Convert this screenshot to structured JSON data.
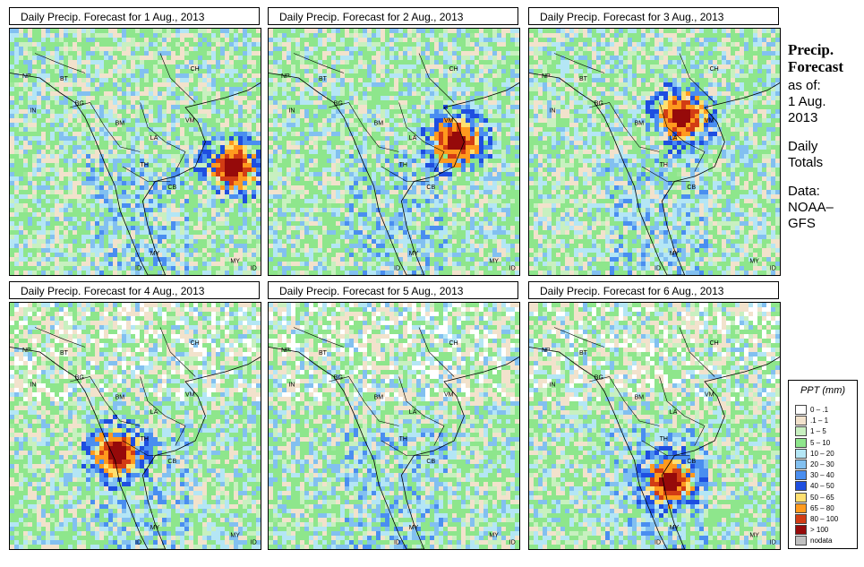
{
  "panels": [
    {
      "title": "Daily Precip. Forecast for  1 Aug., 2013",
      "storm": "east"
    },
    {
      "title": "Daily Precip. Forecast for  2 Aug., 2013",
      "storm": "gulf"
    },
    {
      "title": "Daily Precip. Forecast for  3 Aug., 2013",
      "storm": "north"
    },
    {
      "title": "Daily Precip. Forecast for  4 Aug., 2013",
      "storm": "west"
    },
    {
      "title": "Daily Precip. Forecast for  5 Aug., 2013",
      "storm": "none"
    },
    {
      "title": "Daily Precip. Forecast for  6 Aug., 2013",
      "storm": "coast"
    }
  ],
  "map_labels": [
    "NP",
    "BT",
    "BG",
    "IN",
    "CH",
    "BM",
    "VM",
    "LA",
    "TH",
    "CB",
    "MY",
    "ID",
    "MY",
    "ID"
  ],
  "sidebar": {
    "heading_1": "Precip.",
    "heading_2": "Forecast",
    "as_of": "as of:",
    "date_1": "1 Aug.",
    "date_2": "2013",
    "daily_1": "Daily",
    "daily_2": "Totals",
    "data_1": "Data:",
    "data_2": "NOAA–",
    "data_3": "GFS"
  },
  "legend": {
    "title": "PPT (mm)",
    "classes": [
      {
        "label": "0 – .1",
        "color": "#ffffff"
      },
      {
        "label": ".1 – 1",
        "color": "#f2e2cc"
      },
      {
        "label": "1 – 5",
        "color": "#c8f0c0"
      },
      {
        "label": "5 – 10",
        "color": "#8ee68c"
      },
      {
        "label": "10 – 20",
        "color": "#b4e6f5"
      },
      {
        "label": "20 – 30",
        "color": "#82c0f0"
      },
      {
        "label": "30 – 40",
        "color": "#4a8ef0"
      },
      {
        "label": "40 – 50",
        "color": "#1e4ee0"
      },
      {
        "label": "50 – 65",
        "color": "#ffe070"
      },
      {
        "label": "65 – 80",
        "color": "#ff9a1e"
      },
      {
        "label": "80 – 100",
        "color": "#d23c14"
      },
      {
        "label": "> 100",
        "color": "#960a0a"
      },
      {
        "label": "nodata",
        "color": "#c0c0c0"
      }
    ]
  }
}
